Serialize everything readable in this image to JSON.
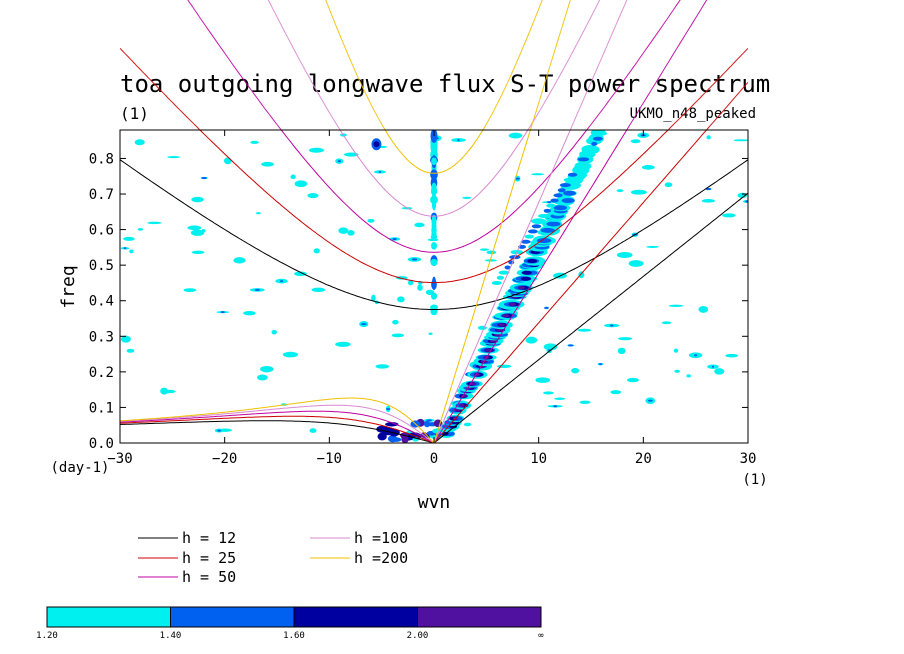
{
  "chart_data": {
    "type": "contour",
    "title": "toa outgoing longwave flux S-T power spectrum",
    "subtitle": "(1)",
    "model_label": "UKMO_n48_peaked",
    "xlabel": "wvn",
    "ylabel": "freq",
    "x_unit": "(1)",
    "y_unit": "(day-1)",
    "xlim": [
      -30,
      30
    ],
    "ylim": [
      0,
      0.88
    ],
    "xticks": [
      -30,
      -20,
      -10,
      0,
      10,
      20,
      30
    ],
    "yticks": [
      0.0,
      0.1,
      0.2,
      0.3,
      0.4,
      0.5,
      0.6,
      0.7,
      0.8
    ],
    "xtick_labels": [
      "−30",
      "−20",
      "−10",
      "0",
      "10",
      "20",
      "30"
    ],
    "ytick_labels": [
      "0.0",
      "0.1",
      "0.2",
      "0.3",
      "0.4",
      "0.5",
      "0.6",
      "0.7",
      "0.8"
    ],
    "dispersion_curves": [
      {
        "name": "h = 12",
        "h": 12,
        "color": "#000000"
      },
      {
        "name": "h = 25",
        "h": 25,
        "color": "#cc0000"
      },
      {
        "name": "h = 50",
        "h": 50,
        "color": "#c000a0"
      },
      {
        "name": "h =100",
        "h": 100,
        "color": "#d888d0"
      },
      {
        "name": "h =200",
        "h": 200,
        "color": "#f0c000"
      }
    ],
    "colorbar": {
      "levels": [
        "1.20",
        "1.40",
        "1.60",
        "2.00",
        "∞"
      ],
      "colors": [
        "#00f0f0",
        "#0060f0",
        "#0000a0",
        "#5010a0"
      ]
    },
    "contour_features": [
      {
        "name": "kelvin-band",
        "x_range": [
          1,
          16
        ],
        "freq_range": [
          0.02,
          0.87
        ],
        "level": 4
      },
      {
        "name": "mrg-low-freq",
        "x_range": [
          -5,
          1
        ],
        "freq_range": [
          0,
          0.06
        ],
        "level": 3
      },
      {
        "name": "zero-wavenumber-column",
        "x": 0,
        "freq_range": [
          0.35,
          0.88
        ],
        "level": 2
      }
    ]
  }
}
